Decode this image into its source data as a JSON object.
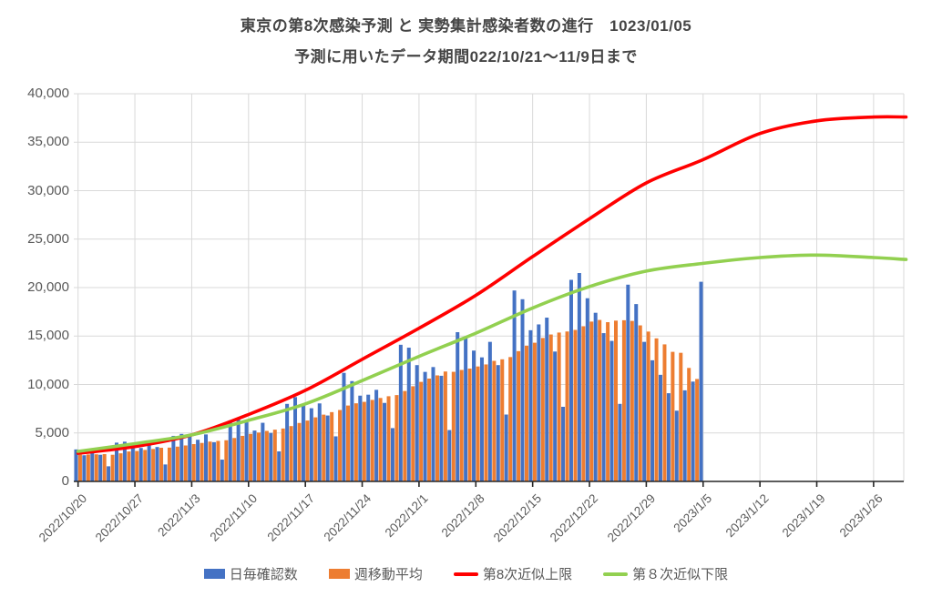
{
  "header": {
    "title": "東京の第8次感染予測 と 実勢集計感染者数の進行　1023/01/05",
    "subtitle": "予測に用いたデータ期間022/10/21～11/9日まで"
  },
  "legend": {
    "daily_label": "日毎確認数",
    "weekly_avg_label": "週移動平均",
    "upper_label": "第8次近似上限",
    "lower_label": "第８次近似下限"
  },
  "colors": {
    "daily": "#4472C4",
    "weekly_avg": "#ED7D31",
    "upper": "#FF0000",
    "lower": "#92D050",
    "grid": "#D9D9D9",
    "axis": "#262626",
    "text": "#595959"
  },
  "chart_data": {
    "type": "bar",
    "subtype": "combo bar+line",
    "title": "東京の第8次感染予測 と 実勢集計感染者数の進行　1023/01/05",
    "xlabel": "",
    "ylabel": "",
    "ylim": [
      0,
      40000
    ],
    "grid": true,
    "legend_position": "bottom",
    "y_ticks": [
      "0",
      "5,000",
      "10,000",
      "15,000",
      "20,000",
      "25,000",
      "30,000",
      "35,000",
      "40,000"
    ],
    "x_ticks": [
      "2022/10/20",
      "2022/10/27",
      "2022/11/3",
      "2022/11/10",
      "2022/11/17",
      "2022/11/24",
      "2022/12/1",
      "2022/12/8",
      "2022/12/15",
      "2022/12/22",
      "2022/12/29",
      "2023/1/5",
      "2023/1/12",
      "2023/1/19",
      "2023/1/26"
    ],
    "categories": [
      "2022/10/20",
      "2022/10/21",
      "2022/10/22",
      "2022/10/23",
      "2022/10/24",
      "2022/10/25",
      "2022/10/26",
      "2022/10/27",
      "2022/10/28",
      "2022/10/29",
      "2022/10/30",
      "2022/10/31",
      "2022/11/1",
      "2022/11/2",
      "2022/11/3",
      "2022/11/4",
      "2022/11/5",
      "2022/11/6",
      "2022/11/7",
      "2022/11/8",
      "2022/11/9",
      "2022/11/10",
      "2022/11/11",
      "2022/11/12",
      "2022/11/13",
      "2022/11/14",
      "2022/11/15",
      "2022/11/16",
      "2022/11/17",
      "2022/11/18",
      "2022/11/19",
      "2022/11/20",
      "2022/11/21",
      "2022/11/22",
      "2022/11/23",
      "2022/11/24",
      "2022/11/25",
      "2022/11/26",
      "2022/11/27",
      "2022/11/28",
      "2022/11/29",
      "2022/11/30",
      "2022/12/1",
      "2022/12/2",
      "2022/12/3",
      "2022/12/4",
      "2022/12/5",
      "2022/12/6",
      "2022/12/7",
      "2022/12/8",
      "2022/12/9",
      "2022/12/10",
      "2022/12/11",
      "2022/12/12",
      "2022/12/13",
      "2022/12/14",
      "2022/12/15",
      "2022/12/16",
      "2022/12/17",
      "2022/12/18",
      "2022/12/19",
      "2022/12/20",
      "2022/12/21",
      "2022/12/22",
      "2022/12/23",
      "2022/12/24",
      "2022/12/25",
      "2022/12/26",
      "2022/12/27",
      "2022/12/28",
      "2022/12/29",
      "2022/12/30",
      "2022/12/31",
      "2023/1/1",
      "2023/1/2",
      "2023/1/3",
      "2023/1/4",
      "2023/1/5"
    ],
    "series": [
      {
        "name": "日毎確認数",
        "type": "bar",
        "color": "#4472C4",
        "values": [
          3300,
          2700,
          3200,
          2750,
          1560,
          4000,
          4100,
          3700,
          3450,
          3900,
          3550,
          1750,
          4700,
          4900,
          4700,
          4300,
          4850,
          4050,
          2250,
          6300,
          6450,
          6100,
          5250,
          6050,
          5000,
          3100,
          8000,
          8700,
          7850,
          7550,
          8050,
          6800,
          4650,
          11200,
          10350,
          8850,
          8950,
          9450,
          8100,
          5500,
          14100,
          13800,
          12000,
          11300,
          11800,
          10900,
          5300,
          15400,
          14800,
          13500,
          12800,
          14400,
          12000,
          6900,
          19700,
          18800,
          15600,
          16200,
          16900,
          13400,
          7700,
          20800,
          21500,
          18900,
          17400,
          15300,
          14500,
          8000,
          20300,
          18300,
          14400,
          12500,
          11000,
          9100,
          7300,
          9400,
          10300,
          20600
        ]
      },
      {
        "name": "週移動平均",
        "type": "bar",
        "color": "#ED7D31",
        "values": [
          2750,
          2780,
          2800,
          2820,
          2750,
          2900,
          3090,
          3140,
          3250,
          3350,
          3470,
          3490,
          3590,
          3710,
          3850,
          3970,
          4110,
          4180,
          4250,
          4480,
          4700,
          4900,
          5040,
          5210,
          5340,
          5460,
          5710,
          6030,
          6280,
          6610,
          6890,
          7150,
          7370,
          7830,
          8060,
          8210,
          8410,
          8610,
          8790,
          8910,
          9330,
          9820,
          10270,
          10610,
          10940,
          11340,
          11310,
          11500,
          11640,
          11860,
          12070,
          12440,
          12600,
          12830,
          13440,
          14010,
          14310,
          14800,
          15160,
          15360,
          15470,
          15630,
          16010,
          16490,
          16660,
          16430,
          16590,
          16630,
          16560,
          16100,
          15460,
          14760,
          14140,
          13370,
          13270,
          11710,
          10570,
          null
        ]
      },
      {
        "name": "第8次近似上限",
        "type": "line",
        "color": "#FF0000",
        "x": [
          "2022/10/20",
          "2022/10/27",
          "2022/11/3",
          "2022/11/10",
          "2022/11/17",
          "2022/11/24",
          "2022/12/1",
          "2022/12/8",
          "2022/12/15",
          "2022/12/22",
          "2022/12/29",
          "2023/1/5",
          "2023/1/12",
          "2023/1/19",
          "2023/1/26",
          "2023/1/30"
        ],
        "values": [
          2900,
          3600,
          4800,
          6900,
          9400,
          12600,
          15800,
          19200,
          23200,
          27100,
          30800,
          33200,
          35900,
          37200,
          37600,
          37600
        ]
      },
      {
        "name": "第８次近似下限",
        "type": "line",
        "color": "#92D050",
        "x": [
          "2022/10/20",
          "2022/10/27",
          "2022/11/3",
          "2022/11/10",
          "2022/11/17",
          "2022/11/24",
          "2022/12/1",
          "2022/12/8",
          "2022/12/15",
          "2022/12/22",
          "2022/12/29",
          "2023/1/5",
          "2023/1/12",
          "2023/1/19",
          "2023/1/26",
          "2023/1/30"
        ],
        "values": [
          3100,
          3900,
          4800,
          6300,
          8000,
          10400,
          12900,
          15300,
          17900,
          20100,
          21700,
          22500,
          23100,
          23350,
          23100,
          22900
        ]
      }
    ]
  }
}
